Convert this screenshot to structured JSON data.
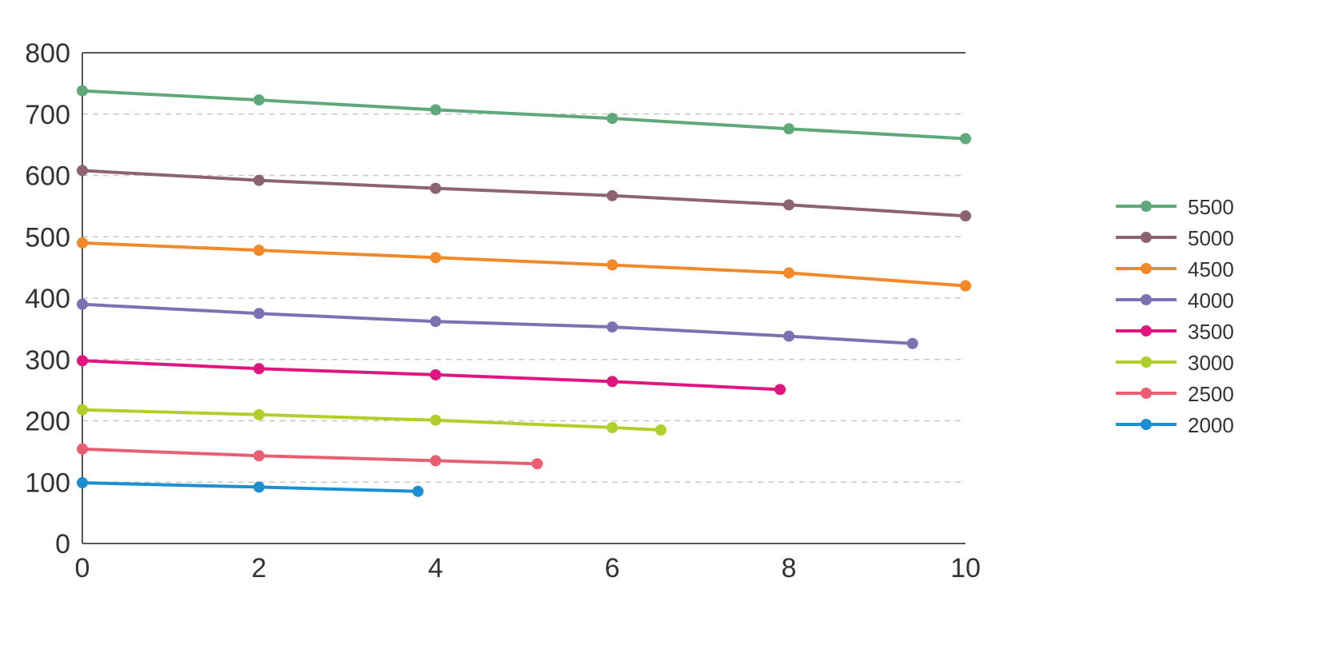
{
  "chart_data": {
    "type": "line",
    "title": "",
    "xlabel": "",
    "ylabel": "",
    "xlim": [
      0,
      10
    ],
    "ylim": [
      0,
      800
    ],
    "xticks": [
      "0",
      "2",
      "4",
      "6",
      "8",
      "10"
    ],
    "yticks": [
      "0",
      "100",
      "200",
      "300",
      "400",
      "500",
      "600",
      "700",
      "800"
    ],
    "grid": "horizontal dashed",
    "legend_position": "right",
    "series": [
      {
        "name": "5500",
        "color": "#5fa87a",
        "x": [
          0,
          2,
          4,
          6,
          8,
          10
        ],
        "y": [
          738,
          723,
          707,
          693,
          676,
          660
        ]
      },
      {
        "name": "5000",
        "color": "#8e6370",
        "x": [
          0,
          2,
          4,
          6,
          8,
          10
        ],
        "y": [
          608,
          592,
          579,
          567,
          552,
          534
        ]
      },
      {
        "name": "4500",
        "color": "#f0892a",
        "x": [
          0,
          2,
          4,
          6,
          8,
          10
        ],
        "y": [
          490,
          478,
          466,
          454,
          441,
          420
        ]
      },
      {
        "name": "4000",
        "color": "#7a72b3",
        "x": [
          0,
          2,
          4,
          6,
          8,
          9.4
        ],
        "y": [
          390,
          375,
          362,
          353,
          338,
          326
        ]
      },
      {
        "name": "3500",
        "color": "#e0157f",
        "x": [
          0,
          2,
          4,
          6,
          7.9
        ],
        "y": [
          298,
          285,
          275,
          264,
          251
        ]
      },
      {
        "name": "3000",
        "color": "#b0cf2a",
        "x": [
          0,
          2,
          4,
          6,
          6.55
        ],
        "y": [
          218,
          210,
          201,
          189,
          185
        ]
      },
      {
        "name": "2500",
        "color": "#e85e72",
        "x": [
          0,
          2,
          4,
          5.15
        ],
        "y": [
          154,
          143,
          135,
          130
        ]
      },
      {
        "name": "2000",
        "color": "#1b8fd2",
        "x": [
          0,
          2,
          3.8
        ],
        "y": [
          99,
          92,
          85
        ]
      }
    ]
  }
}
